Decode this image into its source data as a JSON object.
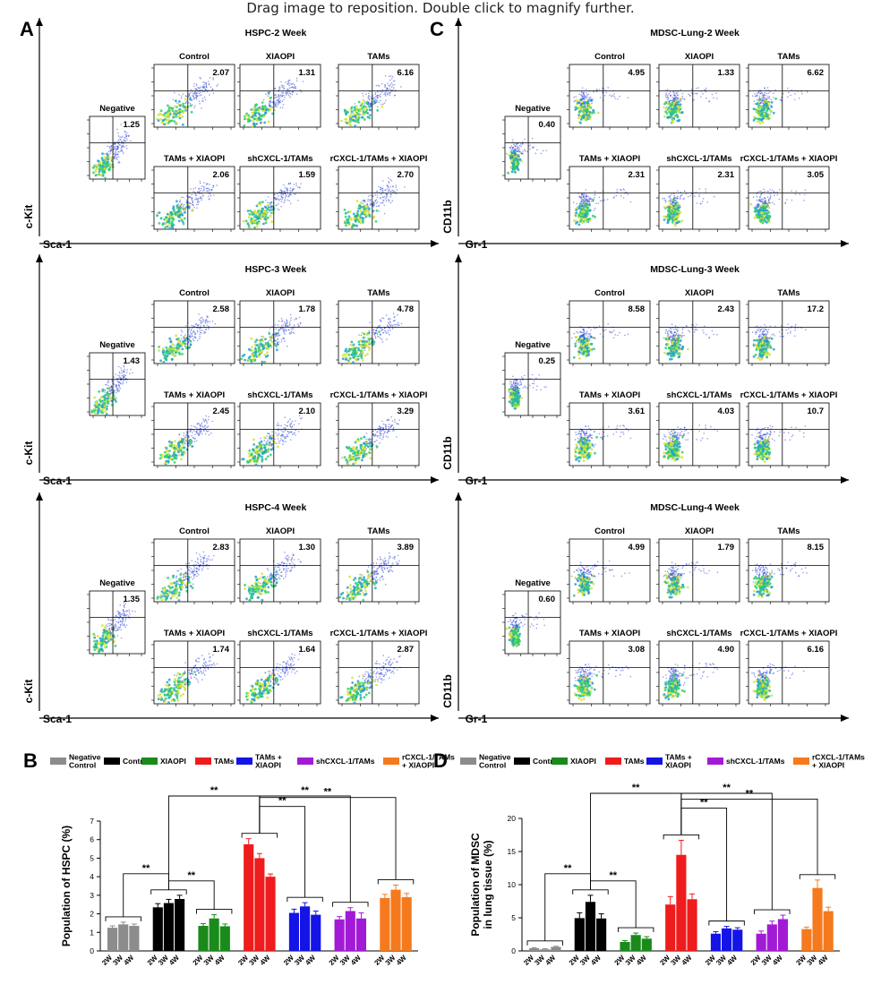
{
  "viewer": {
    "hint": "Drag image to reposition. Double click to magnify further."
  },
  "colors": {
    "negative_control": "#8c8c8c",
    "control": "#000000",
    "xiaopi": "#1a8a1a",
    "tams": "#ee1c1c",
    "tams_xiaopi": "#1414e6",
    "shcxcl": "#a21ad6",
    "rcxcl": "#f57a1e"
  },
  "legend": [
    {
      "key": "negative_control",
      "lines": [
        "Negative",
        "Control"
      ]
    },
    {
      "key": "control",
      "lines": [
        "Control"
      ]
    },
    {
      "key": "xiaopi",
      "lines": [
        "XIAOPI"
      ]
    },
    {
      "key": "tams",
      "lines": [
        "TAMs"
      ]
    },
    {
      "key": "tams_xiaopi",
      "lines": [
        "TAMs +",
        "XIAOPI"
      ]
    },
    {
      "key": "shcxcl",
      "lines": [
        "shCXCL-1/TAMs"
      ]
    },
    {
      "key": "rcxcl",
      "lines": [
        "rCXCL-1/TAMs",
        "+ XIAOPI"
      ]
    }
  ],
  "panels": {
    "A": {
      "letter": "A",
      "xaxis": "Sca-1",
      "yaxis": "c-Kit",
      "blocks": [
        {
          "title": "HSPC-2 Week",
          "negative": "1.25",
          "plots": [
            {
              "label": "Control",
              "value": "2.07"
            },
            {
              "label": "XIAOPI",
              "value": "1.31"
            },
            {
              "label": "TAMs",
              "value": "6.16"
            },
            {
              "label": "TAMs + XIAOPI",
              "value": "2.06"
            },
            {
              "label": "shCXCL-1/TAMs",
              "value": "1.59"
            },
            {
              "label": "rCXCL-1/TAMs + XIAOPI",
              "value": "2.70"
            }
          ]
        },
        {
          "title": "HSPC-3 Week",
          "negative": "1.43",
          "plots": [
            {
              "label": "Control",
              "value": "2.58"
            },
            {
              "label": "XIAOPI",
              "value": "1.78"
            },
            {
              "label": "TAMs",
              "value": "4.78"
            },
            {
              "label": "TAMs + XIAOPI",
              "value": "2.45"
            },
            {
              "label": "shCXCL-1/TAMs",
              "value": "2.10"
            },
            {
              "label": "rCXCL-1/TAMs + XIAOPI",
              "value": "3.29"
            }
          ]
        },
        {
          "title": "HSPC-4 Week",
          "negative": "1.35",
          "plots": [
            {
              "label": "Control",
              "value": "2.83"
            },
            {
              "label": "XIAOPI",
              "value": "1.30"
            },
            {
              "label": "TAMs",
              "value": "3.89"
            },
            {
              "label": "TAMs + XIAOPI",
              "value": "1.74"
            },
            {
              "label": "shCXCL-1/TAMs",
              "value": "1.64"
            },
            {
              "label": "rCXCL-1/TAMs + XIAOPI",
              "value": "2.87"
            }
          ]
        }
      ]
    },
    "C": {
      "letter": "C",
      "xaxis": "Gr-1",
      "yaxis": "CD11b",
      "blocks": [
        {
          "title": "MDSC-Lung-2 Week",
          "negative": "0.40",
          "plots": [
            {
              "label": "Control",
              "value": "4.95"
            },
            {
              "label": "XIAOPI",
              "value": "1.33"
            },
            {
              "label": "TAMs",
              "value": "6.62"
            },
            {
              "label": "TAMs + XIAOPI",
              "value": "2.31"
            },
            {
              "label": "shCXCL-1/TAMs",
              "value": "2.31"
            },
            {
              "label": "rCXCL-1/TAMs + XIAOPI",
              "value": "3.05"
            }
          ]
        },
        {
          "title": "MDSC-Lung-3 Week",
          "negative": "0.25",
          "plots": [
            {
              "label": "Control",
              "value": "8.58"
            },
            {
              "label": "XIAOPI",
              "value": "2.43"
            },
            {
              "label": "TAMs",
              "value": "17.2"
            },
            {
              "label": "TAMs + XIAOPI",
              "value": "3.61"
            },
            {
              "label": "shCXCL-1/TAMs",
              "value": "4.03"
            },
            {
              "label": "rCXCL-1/TAMs + XIAOPI",
              "value": "10.7"
            }
          ]
        },
        {
          "title": "MDSC-Lung-4 Week",
          "negative": "0.60",
          "plots": [
            {
              "label": "Control",
              "value": "4.99"
            },
            {
              "label": "XIAOPI",
              "value": "1.79"
            },
            {
              "label": "TAMs",
              "value": "8.15"
            },
            {
              "label": "TAMs + XIAOPI",
              "value": "3.08"
            },
            {
              "label": "shCXCL-1/TAMs",
              "value": "4.90"
            },
            {
              "label": "rCXCL-1/TAMs + XIAOPI",
              "value": "6.16"
            }
          ]
        }
      ]
    }
  },
  "chart_data": [
    {
      "panel": "B",
      "type": "bar",
      "ylabel": "Population of HSPC (%)",
      "ylim": [
        0,
        7
      ],
      "yticks": [
        "0",
        "1",
        "2",
        "3",
        "4",
        "5",
        "6",
        "7"
      ],
      "time_labels": [
        "2W",
        "3W",
        "4W"
      ],
      "significance": "**",
      "series": [
        {
          "key": "negative_control",
          "values": [
            1.25,
            1.43,
            1.35
          ],
          "errors": [
            0.1,
            0.12,
            0.1
          ]
        },
        {
          "key": "control",
          "values": [
            2.35,
            2.58,
            2.8
          ],
          "errors": [
            0.2,
            0.2,
            0.2
          ]
        },
        {
          "key": "xiaopi",
          "values": [
            1.35,
            1.75,
            1.33
          ],
          "errors": [
            0.12,
            0.2,
            0.12
          ]
        },
        {
          "key": "tams",
          "values": [
            5.75,
            5.0,
            4.0
          ],
          "errors": [
            0.3,
            0.25,
            0.15
          ]
        },
        {
          "key": "tams_xiaopi",
          "values": [
            2.05,
            2.4,
            1.95
          ],
          "errors": [
            0.2,
            0.2,
            0.2
          ]
        },
        {
          "key": "shcxcl",
          "values": [
            1.7,
            2.15,
            1.75
          ],
          "errors": [
            0.15,
            0.18,
            0.3
          ]
        },
        {
          "key": "rcxcl",
          "values": [
            2.85,
            3.3,
            2.9
          ],
          "errors": [
            0.2,
            0.25,
            0.2
          ]
        }
      ]
    },
    {
      "panel": "D",
      "type": "bar",
      "ylabel": "Population of MDSC in lung tissue (%)",
      "ylabel_lines": [
        "Population of MDSC",
        "in lung tissue (%)"
      ],
      "ylim": [
        0,
        20
      ],
      "yticks": [
        "0",
        "5",
        "10",
        "15",
        "20"
      ],
      "time_labels": [
        "2W",
        "3W",
        "4W"
      ],
      "significance": "**",
      "series": [
        {
          "key": "negative_control",
          "values": [
            0.4,
            0.25,
            0.6
          ],
          "errors": [
            0.1,
            0.1,
            0.1
          ]
        },
        {
          "key": "control",
          "values": [
            4.95,
            7.4,
            4.9
          ],
          "errors": [
            0.8,
            1.0,
            0.7
          ]
        },
        {
          "key": "xiaopi",
          "values": [
            1.35,
            2.4,
            1.85
          ],
          "errors": [
            0.2,
            0.3,
            0.3
          ]
        },
        {
          "key": "tams",
          "values": [
            7.0,
            14.5,
            7.8
          ],
          "errors": [
            1.2,
            2.2,
            0.8
          ]
        },
        {
          "key": "tams_xiaopi",
          "values": [
            2.6,
            3.4,
            3.2
          ],
          "errors": [
            0.3,
            0.3,
            0.3
          ]
        },
        {
          "key": "shcxcl",
          "values": [
            2.6,
            4.0,
            4.8
          ],
          "errors": [
            0.4,
            0.5,
            0.6
          ]
        },
        {
          "key": "rcxcl",
          "values": [
            3.3,
            9.5,
            6.0
          ],
          "errors": [
            0.3,
            1.2,
            0.6
          ]
        }
      ]
    }
  ]
}
